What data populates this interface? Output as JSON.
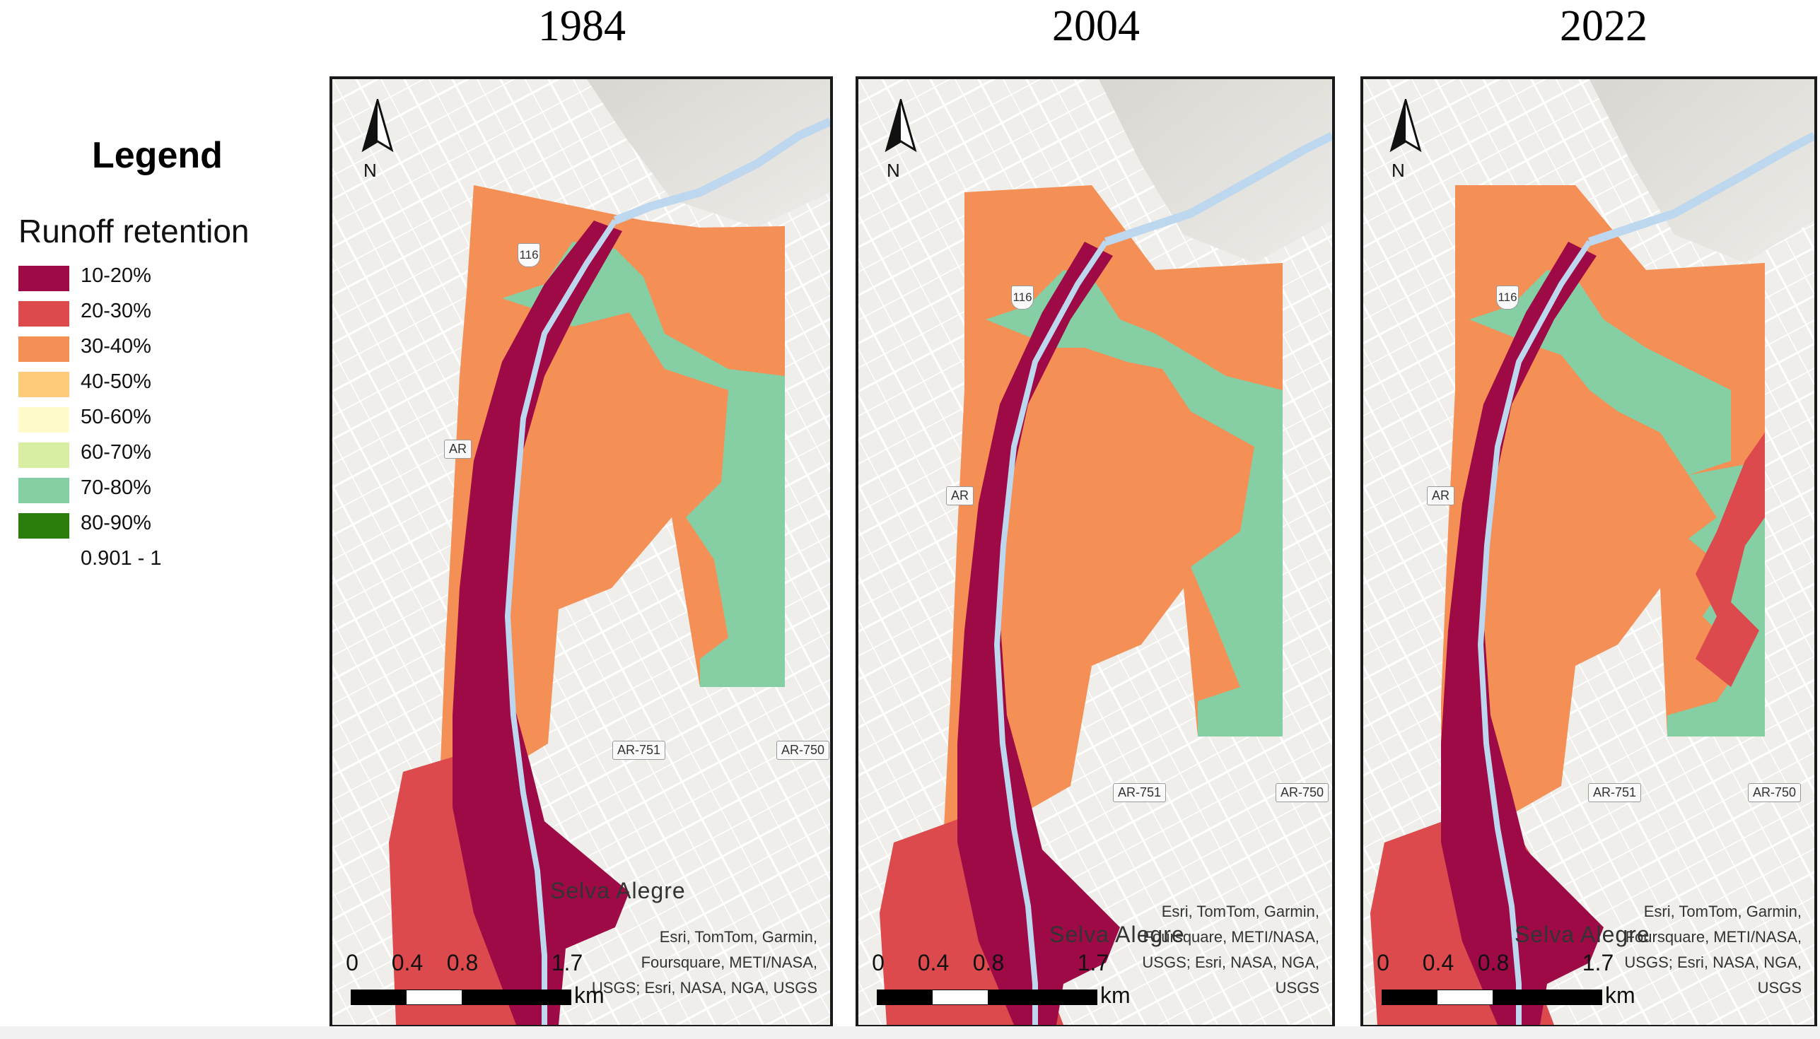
{
  "legend": {
    "title": "Legend",
    "subtitle": "Runoff retention",
    "items": [
      {
        "label": "10-20%",
        "color": "#9e0a45"
      },
      {
        "label": "20-30%",
        "color": "#dd4a4d"
      },
      {
        "label": "30-40%",
        "color": "#f48f55"
      },
      {
        "label": "40-50%",
        "color": "#fdcc7a"
      },
      {
        "label": "50-60%",
        "color": "#fffbcb"
      },
      {
        "label": "60-70%",
        "color": "#d8efa3"
      },
      {
        "label": "70-80%",
        "color": "#86cfa5"
      },
      {
        "label": "80-90%",
        "color": "#2b7d0e"
      },
      {
        "label": "0.901 - 1",
        "color": "#ffffff"
      }
    ]
  },
  "panels": [
    {
      "year": "1984",
      "attribution": [
        "Esri, TomTom, Garmin,",
        "Foursquare, METI/NASA,",
        "USGS; Esri, NASA, NGA, USGS"
      ],
      "place_label": "Selva Alegre",
      "road_labels": [
        "116",
        "AR-751",
        "AR-750",
        "AR"
      ]
    },
    {
      "year": "2004",
      "attribution": [
        "Esri, TomTom, Garmin,",
        "Foursquare, METI/NASA,",
        "USGS; Esri, NASA, NGA,",
        "USGS"
      ],
      "place_label": "Selva Alegre",
      "road_labels": [
        "116",
        "AR-751",
        "AR-750",
        "AR"
      ]
    },
    {
      "year": "2022",
      "attribution": [
        "Esri, TomTom, Garmin,",
        "Foursquare, METI/NASA,",
        "USGS; Esri, NASA, NGA,",
        "USGS"
      ],
      "place_label": "Selva Alegre",
      "road_labels": [
        "116",
        "AR-751",
        "AR-750",
        "AR"
      ]
    }
  ],
  "north_label": "N",
  "scale": {
    "ticks": [
      "0",
      "0.4",
      "0.8",
      "1.7"
    ],
    "unit": "km"
  }
}
